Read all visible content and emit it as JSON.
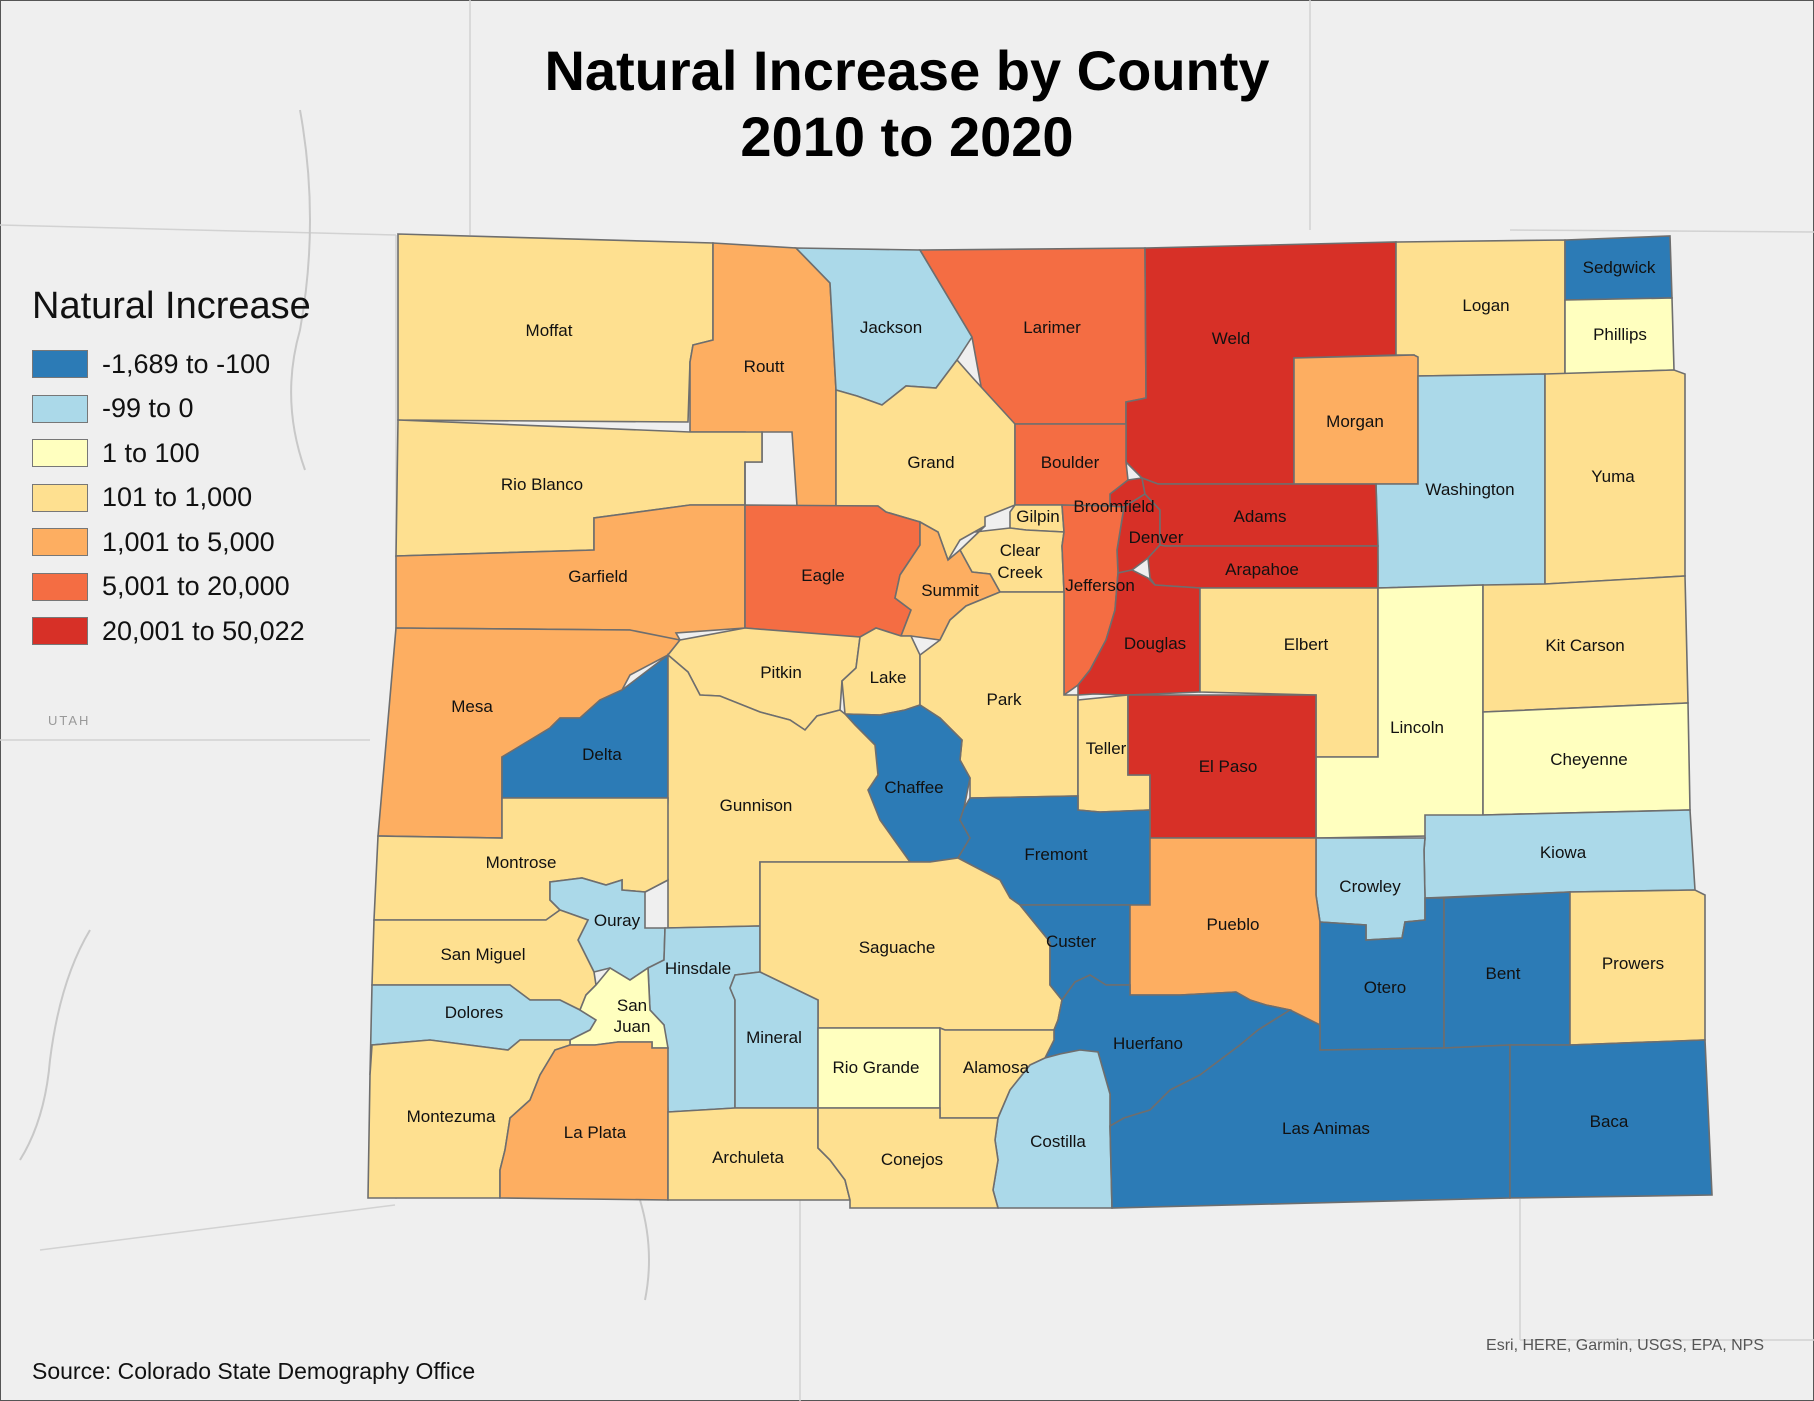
{
  "title_line1": "Natural Increase by County",
  "title_line2": "2010 to 2020",
  "legend": {
    "title": "Natural Increase",
    "classes": [
      {
        "label": "-1,689 to -100",
        "color": "#2c7bb6"
      },
      {
        "label": "-99 to 0",
        "color": "#abd9e9"
      },
      {
        "label": "1 to 100",
        "color": "#ffffbf"
      },
      {
        "label": "101 to 1,000",
        "color": "#fee090"
      },
      {
        "label": "1,001 to 5,000",
        "color": "#fdae61"
      },
      {
        "label": "5,001 to 20,000",
        "color": "#f46d43"
      },
      {
        "label": "20,001 to 50,022",
        "color": "#d73027"
      }
    ]
  },
  "source": "Source: Colorado State Demography Office",
  "attribution": "Esri, HERE, Garmin, USGS, EPA, NPS",
  "neighbor_state_label": "UTAH",
  "counties": {
    "moffat": {
      "name": "Moffat",
      "class": 3
    },
    "routt": {
      "name": "Routt",
      "class": 4
    },
    "jackson": {
      "name": "Jackson",
      "class": 1
    },
    "larimer": {
      "name": "Larimer",
      "class": 5
    },
    "weld": {
      "name": "Weld",
      "class": 6
    },
    "logan": {
      "name": "Logan",
      "class": 3
    },
    "sedgwick": {
      "name": "Sedgwick",
      "class": 0
    },
    "phillips": {
      "name": "Phillips",
      "class": 2
    },
    "rio_blanco": {
      "name": "Rio Blanco",
      "class": 3
    },
    "grand": {
      "name": "Grand",
      "class": 3
    },
    "boulder": {
      "name": "Boulder",
      "class": 5
    },
    "broomfield": {
      "name": "Broomfield",
      "class": 6
    },
    "morgan": {
      "name": "Morgan",
      "class": 4
    },
    "washington": {
      "name": "Washington",
      "class": 1
    },
    "yuma": {
      "name": "Yuma",
      "class": 3
    },
    "garfield": {
      "name": "Garfield",
      "class": 4
    },
    "eagle": {
      "name": "Eagle",
      "class": 5
    },
    "gilpin": {
      "name": "Gilpin",
      "class": 3
    },
    "clear_creek_1": {
      "name": "Clear",
      "class": 3
    },
    "clear_creek_2": {
      "name": "Creek",
      "class": 3
    },
    "summit": {
      "name": "Summit",
      "class": 4
    },
    "denver": {
      "name": "Denver",
      "class": 6
    },
    "adams": {
      "name": "Adams",
      "class": 6
    },
    "arapahoe": {
      "name": "Arapahoe",
      "class": 6
    },
    "jefferson": {
      "name": "Jefferson",
      "class": 5
    },
    "douglas": {
      "name": "Douglas",
      "class": 6
    },
    "elbert": {
      "name": "Elbert",
      "class": 3
    },
    "lincoln": {
      "name": "Lincoln",
      "class": 2
    },
    "kit_carson": {
      "name": "Kit Carson",
      "class": 3
    },
    "cheyenne": {
      "name": "Cheyenne",
      "class": 2
    },
    "mesa": {
      "name": "Mesa",
      "class": 4
    },
    "pitkin": {
      "name": "Pitkin",
      "class": 3
    },
    "lake": {
      "name": "Lake",
      "class": 3
    },
    "park": {
      "name": "Park",
      "class": 3
    },
    "teller": {
      "name": "Teller",
      "class": 3
    },
    "el_paso": {
      "name": "El Paso",
      "class": 6
    },
    "delta": {
      "name": "Delta",
      "class": 0
    },
    "chaffee": {
      "name": "Chaffee",
      "class": 0
    },
    "gunnison": {
      "name": "Gunnison",
      "class": 3
    },
    "fremont": {
      "name": "Fremont",
      "class": 0
    },
    "kiowa": {
      "name": "Kiowa",
      "class": 1
    },
    "montrose": {
      "name": "Montrose",
      "class": 3
    },
    "ouray": {
      "name": "Ouray",
      "class": 1
    },
    "crowley": {
      "name": "Crowley",
      "class": 1
    },
    "san_miguel": {
      "name": "San Miguel",
      "class": 3
    },
    "hinsdale": {
      "name": "Hinsdale",
      "class": 1
    },
    "saguache": {
      "name": "Saguache",
      "class": 3
    },
    "custer": {
      "name": "Custer",
      "class": 0
    },
    "pueblo": {
      "name": "Pueblo",
      "class": 4
    },
    "otero": {
      "name": "Otero",
      "class": 0
    },
    "bent": {
      "name": "Bent",
      "class": 0
    },
    "prowers": {
      "name": "Prowers",
      "class": 3
    },
    "dolores": {
      "name": "Dolores",
      "class": 1
    },
    "san_juan_1": {
      "name": "San",
      "class": 2
    },
    "san_juan_2": {
      "name": "Juan",
      "class": 2
    },
    "mineral": {
      "name": "Mineral",
      "class": 1
    },
    "huerfano": {
      "name": "Huerfano",
      "class": 0
    },
    "rio_grande": {
      "name": "Rio Grande",
      "class": 2
    },
    "alamosa": {
      "name": "Alamosa",
      "class": 3
    },
    "montezuma": {
      "name": "Montezuma",
      "class": 3
    },
    "la_plata": {
      "name": "La Plata",
      "class": 4
    },
    "costilla": {
      "name": "Costilla",
      "class": 1
    },
    "las_animas": {
      "name": "Las Animas",
      "class": 0
    },
    "baca": {
      "name": "Baca",
      "class": 0
    },
    "archuleta": {
      "name": "Archuleta",
      "class": 3
    },
    "conejos": {
      "name": "Conejos",
      "class": 3
    }
  }
}
